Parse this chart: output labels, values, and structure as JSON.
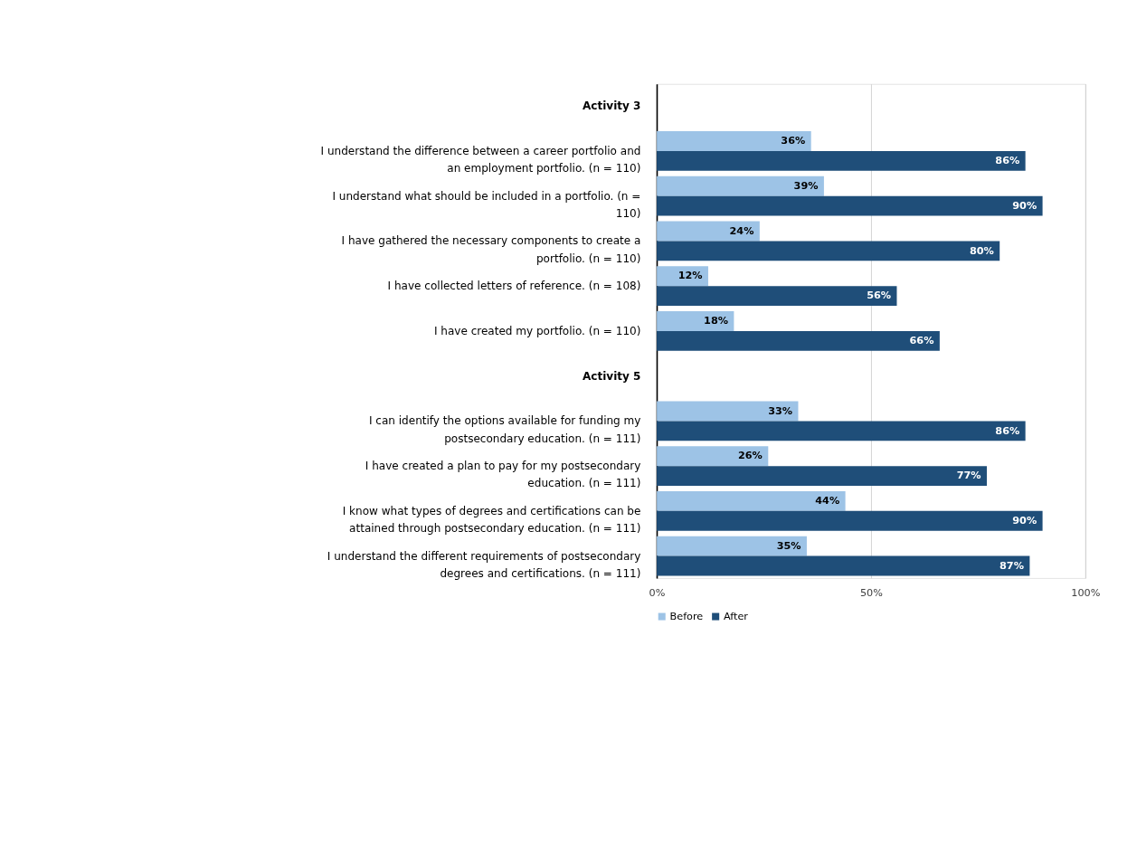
{
  "chart_data": {
    "type": "bar",
    "orientation": "horizontal",
    "categories": [
      "Activity 3",
      "I understand the difference between a career portfolio and an employment portfolio.  (n = 110)",
      "I understand what should be included in a portfolio.  (n = 110)",
      "I have gathered the necessary components to create a portfolio.  (n = 110)",
      "I have collected letters of reference.  (n = 108)",
      "I have created my portfolio.  (n = 110)",
      "Activity 5",
      "I can identify the options available for funding my postsecondary education.  (n = 111)",
      "I have created a plan to pay for my postsecondary education.  (n = 111)",
      "I know what types of degrees and certifications can be attained through postsecondary education.  (n = 111)",
      "I understand the different requirements of postsecondary degrees and certifications.  (n = 111)"
    ],
    "series": [
      {
        "name": "Before",
        "color": "#9dc3e6",
        "values": [
          null,
          36,
          39,
          24,
          12,
          18,
          null,
          33,
          26,
          44,
          35
        ],
        "value_labels": [
          null,
          "36%",
          "39%",
          "24%",
          "12%",
          "18%",
          null,
          "33%",
          "26%",
          "44%",
          "35%"
        ]
      },
      {
        "name": "After",
        "color": "#1f4e79",
        "values": [
          null,
          86,
          90,
          80,
          56,
          66,
          null,
          86,
          77,
          90,
          87
        ],
        "value_labels": [
          null,
          "86%",
          "90%",
          "80%",
          "56%",
          "66%",
          null,
          "86%",
          "77%",
          "90%",
          "87%"
        ]
      }
    ],
    "xlim": [
      0,
      100
    ],
    "xticks": [
      {
        "value": 0,
        "label": "0%"
      },
      {
        "value": 50,
        "label": "50%"
      },
      {
        "value": 100,
        "label": "100%"
      }
    ],
    "grid": "x",
    "legend": "bottom"
  }
}
